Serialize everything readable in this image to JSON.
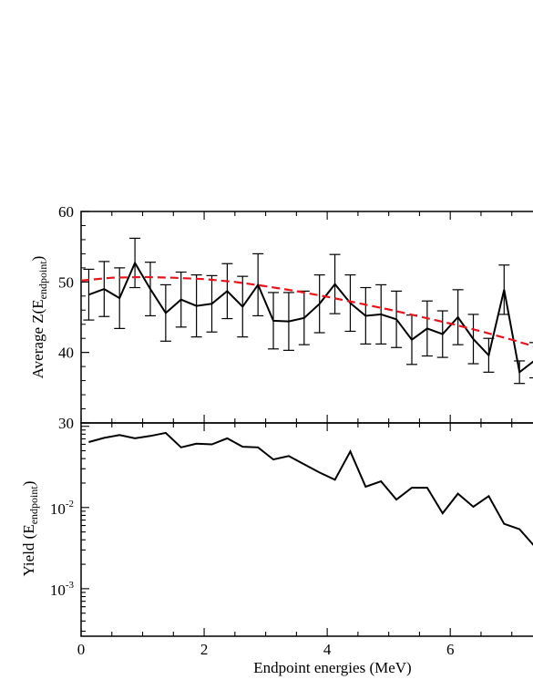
{
  "chart_data": [
    {
      "type": "line",
      "ylabel": {
        "base": "Average Z(E",
        "sub": "endpoint",
        "end": ")"
      },
      "xlim": [
        0,
        7.7
      ],
      "ylim": [
        30,
        60
      ],
      "yticks": [
        30,
        40,
        50,
        60
      ],
      "grid": false,
      "legend": "none",
      "series": [
        {
          "style": "solid-with-errorbars",
          "color": "#000000",
          "x": [
            0.125,
            0.375,
            0.625,
            0.875,
            1.125,
            1.375,
            1.625,
            1.875,
            2.125,
            2.375,
            2.625,
            2.875,
            3.125,
            3.375,
            3.625,
            3.875,
            4.125,
            4.375,
            4.625,
            4.875,
            5.125,
            5.375,
            5.625,
            5.875,
            6.125,
            6.375,
            6.625,
            6.875,
            7.125,
            7.375,
            7.625
          ],
          "y": [
            48.2,
            49.0,
            47.7,
            52.7,
            49.0,
            45.6,
            47.5,
            46.6,
            46.9,
            48.7,
            46.5,
            49.6,
            44.5,
            44.4,
            44.9,
            46.9,
            49.7,
            47.0,
            45.2,
            45.4,
            44.7,
            41.8,
            43.4,
            42.6,
            45.0,
            41.9,
            39.6,
            48.9,
            37.2,
            38.9,
            40.4
          ],
          "yerr": [
            3.6,
            3.9,
            4.3,
            3.5,
            3.8,
            4.0,
            3.9,
            4.4,
            4.0,
            3.9,
            4.3,
            4.4,
            4.0,
            4.1,
            3.8,
            4.1,
            4.2,
            4.0,
            4.0,
            4.2,
            4.0,
            3.5,
            3.9,
            3.3,
            3.9,
            3.5,
            2.4,
            3.5,
            1.6,
            2.5,
            2.0
          ]
        },
        {
          "style": "dashed-fit",
          "color": "#e8141c",
          "x": [
            0.0,
            0.5,
            1.0,
            1.5,
            2.0,
            2.5,
            3.0,
            3.5,
            4.0,
            4.5,
            5.0,
            5.5,
            6.0,
            6.5,
            7.0,
            7.5,
            7.7
          ],
          "y": [
            50.2,
            50.6,
            50.7,
            50.6,
            50.4,
            50.0,
            49.4,
            48.7,
            47.9,
            47.0,
            46.1,
            45.1,
            44.1,
            43.0,
            41.8,
            40.5,
            40.0
          ]
        }
      ]
    },
    {
      "type": "line",
      "xlabel": "Endpoint energies (MeV)",
      "ylabel": {
        "base": "Yield (E",
        "sub": "endpoint",
        "end": ")"
      },
      "xlim": [
        0,
        7.7
      ],
      "ylim": [
        0.00026,
        0.11
      ],
      "yscale": "log",
      "xticks": [
        0,
        2,
        4,
        6
      ],
      "ytick_labels": [
        {
          "value": 0.01,
          "base": "10",
          "exp": "-2"
        },
        {
          "value": 0.001,
          "base": "10",
          "exp": "-3"
        }
      ],
      "grid": false,
      "legend": "none",
      "series": [
        {
          "style": "solid",
          "color": "#000000",
          "x": [
            0.125,
            0.375,
            0.625,
            0.875,
            1.125,
            1.375,
            1.625,
            1.875,
            2.125,
            2.375,
            2.625,
            2.875,
            3.125,
            3.375,
            3.625,
            3.875,
            4.125,
            4.375,
            4.625,
            4.875,
            5.125,
            5.375,
            5.625,
            5.875,
            6.125,
            6.375,
            6.625,
            6.875,
            7.125,
            7.375,
            7.625,
            7.7
          ],
          "y": [
            0.064,
            0.072,
            0.078,
            0.071,
            0.076,
            0.083,
            0.055,
            0.061,
            0.06,
            0.071,
            0.056,
            0.055,
            0.039,
            0.043,
            0.034,
            0.027,
            0.022,
            0.049,
            0.018,
            0.021,
            0.0125,
            0.0175,
            0.0175,
            0.0085,
            0.0148,
            0.0102,
            0.0138,
            0.0063,
            0.0054,
            0.0033,
            0.0023,
            0.0038
          ]
        }
      ]
    }
  ]
}
